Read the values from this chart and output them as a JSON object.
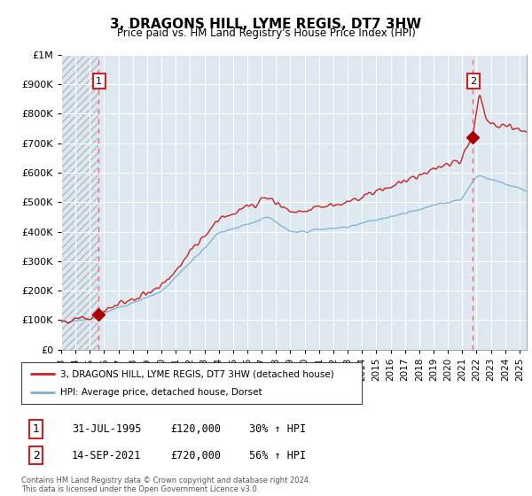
{
  "title": "3, DRAGONS HILL, LYME REGIS, DT7 3HW",
  "subtitle": "Price paid vs. HM Land Registry's House Price Index (HPI)",
  "legend_line1": "3, DRAGONS HILL, LYME REGIS, DT7 3HW (detached house)",
  "legend_line2": "HPI: Average price, detached house, Dorset",
  "sale1_label": "1",
  "sale1_date": "31-JUL-1995",
  "sale1_price": "£120,000",
  "sale1_hpi": "30% ↑ HPI",
  "sale2_label": "2",
  "sale2_date": "14-SEP-2021",
  "sale2_price": "£720,000",
  "sale2_hpi": "56% ↑ HPI",
  "footer": "Contains HM Land Registry data © Crown copyright and database right 2024.\nThis data is licensed under the Open Government Licence v3.0.",
  "sale1_x": 1995.583,
  "sale1_y": 120000,
  "sale2_x": 2021.708,
  "sale2_y": 720000,
  "hpi_color": "#7ab0d4",
  "price_color": "#cc2222",
  "sale_dot_color": "#aa0000",
  "vline_color": "#ee6677",
  "grid_color": "#c8d8e8",
  "bg_color": "#ffffff",
  "plot_bg_color": "#dde8f0",
  "hatch_color": "#b0b8c0",
  "ylim": [
    0,
    1000000
  ],
  "xlim_start": 1993,
  "xlim_end": 2025.5,
  "xtick_years": [
    1993,
    1994,
    1995,
    1996,
    1997,
    1998,
    1999,
    2000,
    2001,
    2002,
    2003,
    2004,
    2005,
    2006,
    2007,
    2008,
    2009,
    2010,
    2011,
    2012,
    2013,
    2014,
    2015,
    2016,
    2017,
    2018,
    2019,
    2020,
    2021,
    2022,
    2023,
    2024,
    2025
  ],
  "yticks": [
    0,
    100000,
    200000,
    300000,
    400000,
    500000,
    600000,
    700000,
    800000,
    900000,
    1000000
  ]
}
